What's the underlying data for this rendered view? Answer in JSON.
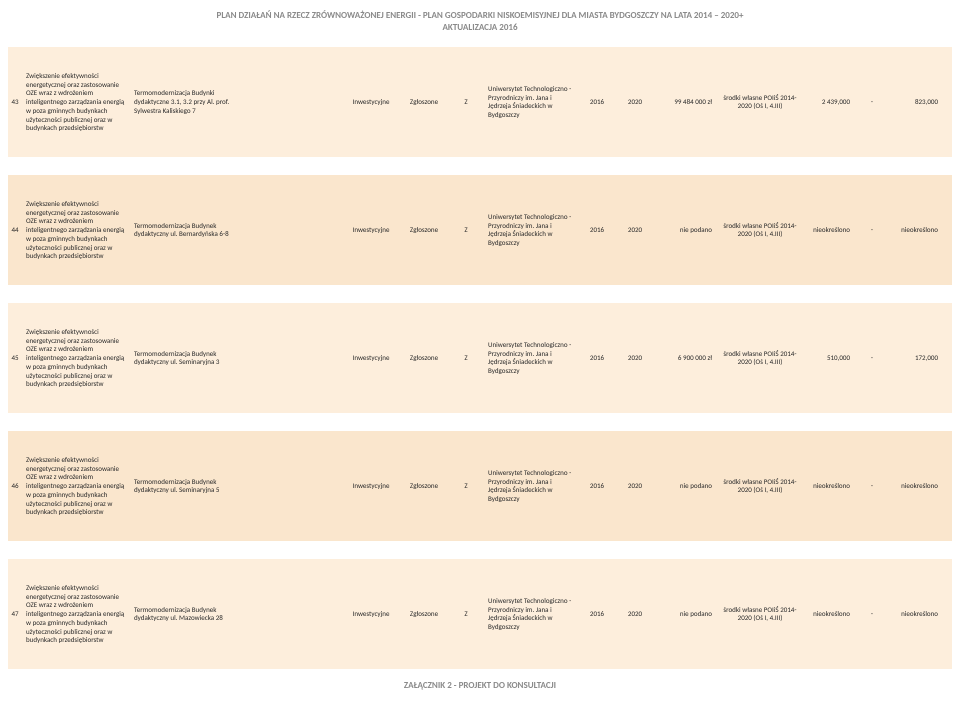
{
  "document": {
    "title_line1": "PLAN DZIAŁAŃ NA RZECZ ZRÓWNOWAŻONEJ ENERGII - PLAN GOSPODARKI NISKOEMISYJNEJ DLA MIASTA BYDGOSZCZY NA LATA 2014 – 2020+",
    "title_line2": "AKTUALIZACJA  2016",
    "footer": "ZAŁĄCZNIK 2 - PROJEKT DO KONSULTACJI"
  },
  "styles": {
    "colors": {
      "row_bg_a": "#fdeedc",
      "row_bg_b": "#fae6cd",
      "page_bg": "#ffffff",
      "text": "#2a2a2a",
      "title_text": "#8a8a8a"
    },
    "font_sizes": {
      "title_pt": 9,
      "cell_pt": 7,
      "footer_pt": 9
    }
  },
  "common": {
    "type": "Inwestycyjne",
    "status": "Zgłoszone",
    "z": "Z",
    "applicant": "Uniwersytet Technologiczno - Przyrodniczy im. Jana i Jędrzeja Śniadeckich w Bydgoszczy",
    "year_from": "2016",
    "year_to": "2020",
    "source": "środki własne POIiŚ 2014-2020 (Oś I, 4.III)",
    "dash": "-",
    "description": "Zwiększenie efektywności energetycznej oraz zastosowanie OZE wraz z wdrożeniem inteligentnego zarządzania energią w poza gminnych budynkach użyteczności publicznej oraz w budynkach przedsiębiorstw"
  },
  "rows": [
    {
      "idx": "43",
      "bg": "#fdeedc",
      "project": "Termomodernizacja Budynki dydaktyczne 3.1, 3.2 przy Al. prof. Sylwestra Kaliskiego 7",
      "cost": "99 484 000 zł",
      "val1": "2 439,000",
      "val2": "823,000"
    },
    {
      "idx": "44",
      "bg": "#fae6cd",
      "project": "Termomodernizacja Budynek dydaktyczny ul. Bernardyńska 6-8",
      "cost": "nie podano",
      "val1": "nieokreślono",
      "val2": "nieokreślono"
    },
    {
      "idx": "45",
      "bg": "#fdeedc",
      "project": "Termomodernizacja Budynek dydaktyczny ul. Seminaryjna 3",
      "cost": "6 900 000 zł",
      "val1": "510,000",
      "val2": "172,000"
    },
    {
      "idx": "46",
      "bg": "#fae6cd",
      "project": "Termomodernizacja Budynek dydaktyczny ul. Seminaryjna 5",
      "cost": "nie podano",
      "val1": "nieokreślono",
      "val2": "nieokreślono"
    },
    {
      "idx": "47",
      "bg": "#fdeedc",
      "project": "Termomodernizacja Budynek dydaktyczny ul. Mazowiecka 28",
      "cost": "nie podano",
      "val1": "nieokreślono",
      "val2": "nieokreślono"
    }
  ]
}
